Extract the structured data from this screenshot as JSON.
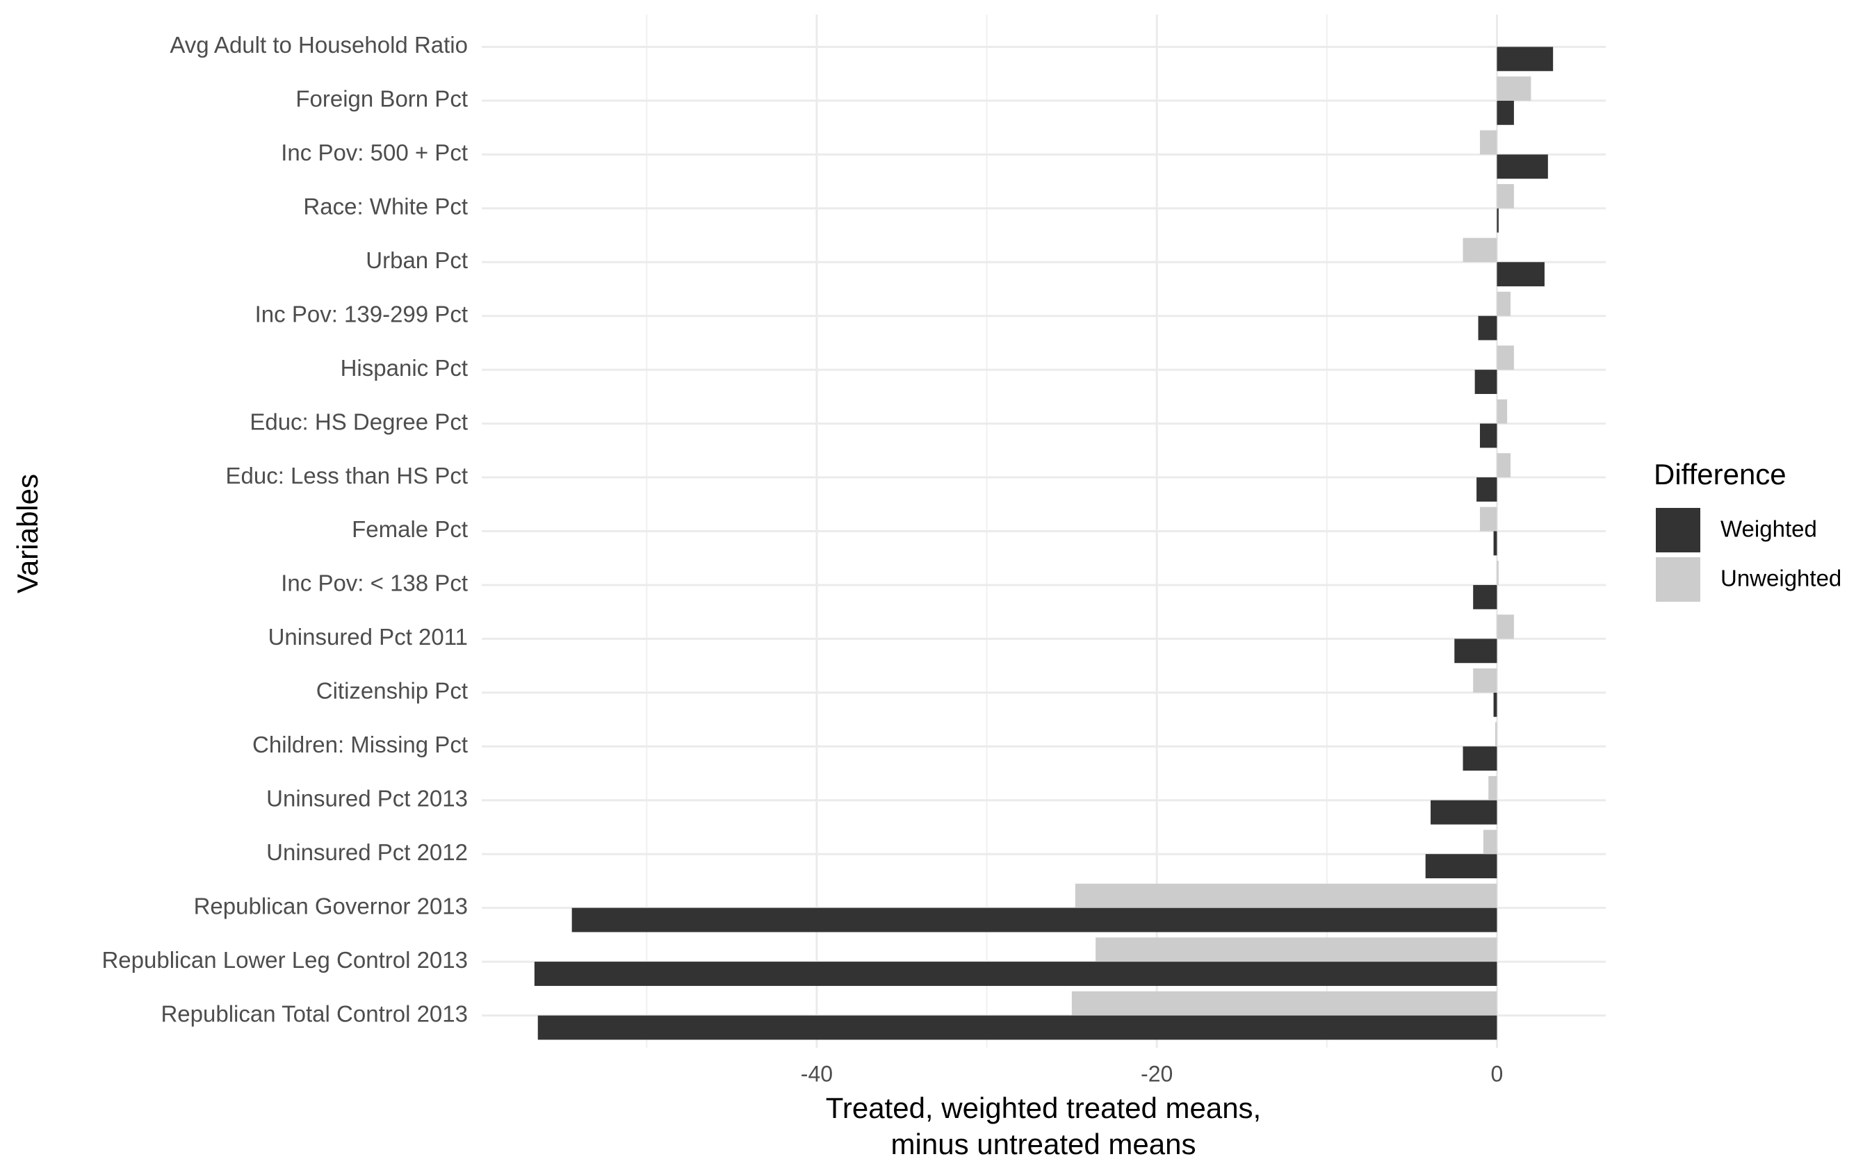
{
  "chart_data": {
    "type": "bar",
    "orientation": "horizontal",
    "x_label": [
      "Treated, weighted treated means,",
      "minus untreated means"
    ],
    "y_label": "Variables",
    "categories": [
      "Avg Adult to Household Ratio",
      "Foreign Born Pct",
      "Inc Pov: 500 + Pct",
      "Race: White Pct",
      "Urban Pct",
      "Inc Pov: 139-299 Pct",
      "Hispanic Pct",
      "Educ: HS Degree Pct",
      "Educ: Less than HS Pct",
      "Female Pct",
      "Inc Pov: < 138 Pct",
      "Uninsured Pct 2011",
      "Citizenship Pct",
      "Children: Missing Pct",
      "Uninsured Pct 2013",
      "Uninsured Pct 2012",
      "Republican Governor 2013",
      "Republican Lower Leg Control 2013",
      "Republican Total Control 2013"
    ],
    "series": [
      {
        "name": "Weighted",
        "color": "#333333",
        "values": [
          3.3,
          1.0,
          3.0,
          0.1,
          2.8,
          -1.1,
          -1.3,
          -1.0,
          -1.2,
          -0.2,
          -1.4,
          -2.5,
          -0.2,
          -2.0,
          -3.9,
          -4.2,
          -54.4,
          -56.6,
          -56.4
        ]
      },
      {
        "name": "Unweighted",
        "color": "#cccccc",
        "values": [
          0.0,
          2.0,
          -1.0,
          1.0,
          -2.0,
          0.8,
          1.0,
          0.6,
          0.8,
          -1.0,
          0.1,
          1.0,
          -1.4,
          -0.1,
          -0.5,
          -0.8,
          -24.8,
          -23.6,
          -25.0
        ]
      }
    ],
    "xlim": [
      -59.7,
      6.4
    ],
    "xticks": [
      -40,
      -20,
      0
    ],
    "grid": true,
    "legend_title": "Difference",
    "legend": "right"
  }
}
